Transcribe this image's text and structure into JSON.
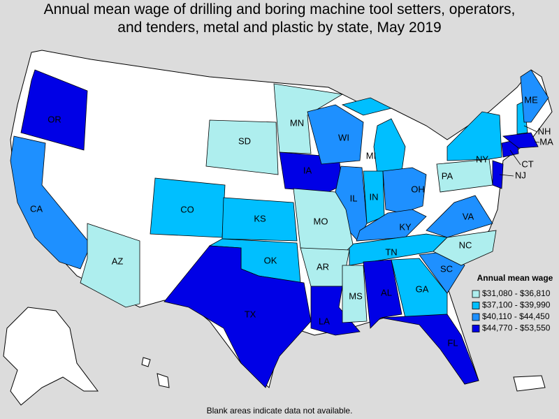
{
  "title_lines": [
    "Annual mean wage of drilling and boring machine tool setters, operators,",
    "and tenders, metal and plastic by state, May 2019"
  ],
  "legend": {
    "title": "Annual mean wage",
    "items": [
      {
        "label": "$31,080 - $36,810",
        "color": "#aeeeee"
      },
      {
        "label": "$37,100 - $39,990",
        "color": "#00bfff"
      },
      {
        "label": "$40,110 - $44,450",
        "color": "#1e90ff"
      },
      {
        "label": "$44,770 - $53,550",
        "color": "#0000e6"
      }
    ]
  },
  "states": [
    {
      "abbr": "OR",
      "class": 3
    },
    {
      "abbr": "CA",
      "class": 2
    },
    {
      "abbr": "AZ",
      "class": 0
    },
    {
      "abbr": "CO",
      "class": 1
    },
    {
      "abbr": "SD",
      "class": 0
    },
    {
      "abbr": "MN",
      "class": 0
    },
    {
      "abbr": "IA",
      "class": 3
    },
    {
      "abbr": "WI",
      "class": 2
    },
    {
      "abbr": "MI",
      "class": 1
    },
    {
      "abbr": "IL",
      "class": 2
    },
    {
      "abbr": "IN",
      "class": 1
    },
    {
      "abbr": "OH",
      "class": 2
    },
    {
      "abbr": "KY",
      "class": 2
    },
    {
      "abbr": "TN",
      "class": 1
    },
    {
      "abbr": "MO",
      "class": 0
    },
    {
      "abbr": "KS",
      "class": 1
    },
    {
      "abbr": "OK",
      "class": 1
    },
    {
      "abbr": "TX",
      "class": 3
    },
    {
      "abbr": "AR",
      "class": 0
    },
    {
      "abbr": "LA",
      "class": 3
    },
    {
      "abbr": "MS",
      "class": 0
    },
    {
      "abbr": "AL",
      "class": 3
    },
    {
      "abbr": "GA",
      "class": 1
    },
    {
      "abbr": "FL",
      "class": 3
    },
    {
      "abbr": "SC",
      "class": 2
    },
    {
      "abbr": "NC",
      "class": 0
    },
    {
      "abbr": "VA",
      "class": 2
    },
    {
      "abbr": "PA",
      "class": 0
    },
    {
      "abbr": "NY",
      "class": 1
    },
    {
      "abbr": "NJ",
      "class": 3
    },
    {
      "abbr": "CT",
      "class": 3
    },
    {
      "abbr": "MA",
      "class": 3
    },
    {
      "abbr": "NH",
      "class": 1
    },
    {
      "abbr": "ME",
      "class": 2
    }
  ],
  "footnote": "Blank areas indicate data not available."
}
